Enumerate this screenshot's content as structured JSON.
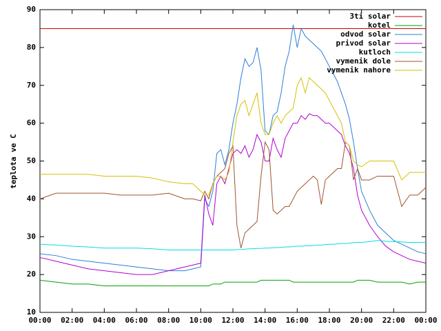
{
  "chart_data": {
    "type": "line",
    "y_label": "teplota ve C",
    "x": [
      0,
      1,
      2,
      3,
      4,
      5,
      6,
      7,
      8,
      9,
      9.5,
      10,
      10.25,
      10.5,
      10.75,
      11,
      11.25,
      11.5,
      11.75,
      12,
      12.25,
      12.5,
      12.75,
      13,
      13.25,
      13.5,
      13.75,
      14,
      14.25,
      14.5,
      14.75,
      15,
      15.25,
      15.5,
      15.75,
      16,
      16.25,
      16.5,
      16.75,
      17,
      17.25,
      17.5,
      17.75,
      18,
      18.25,
      18.5,
      18.75,
      19,
      19.25,
      19.5,
      19.75,
      20,
      20.5,
      21,
      21.5,
      22,
      22.5,
      23,
      23.5,
      24
    ],
    "xlim": [
      0,
      24
    ],
    "xticks": [
      {
        "value": 0,
        "label": "00:00"
      },
      {
        "value": 2,
        "label": "02:00"
      },
      {
        "value": 4,
        "label": "04:00"
      },
      {
        "value": 6,
        "label": "06:00"
      },
      {
        "value": 8,
        "label": "08:00"
      },
      {
        "value": 10,
        "label": "10:00"
      },
      {
        "value": 12,
        "label": "12:00"
      },
      {
        "value": 14,
        "label": "14:00"
      },
      {
        "value": 16,
        "label": "16:00"
      },
      {
        "value": 18,
        "label": "18:00"
      },
      {
        "value": 20,
        "label": "20:00"
      },
      {
        "value": 22,
        "label": "22:00"
      },
      {
        "value": 24,
        "label": "00:00"
      }
    ],
    "ylim": [
      10,
      90
    ],
    "yticks": [
      10,
      20,
      30,
      40,
      50,
      60,
      70,
      80,
      90
    ],
    "legend": "top-right",
    "series": [
      {
        "name": "3ti solar",
        "color": "#cc0000",
        "values": [
          85,
          85,
          85,
          85,
          85,
          85,
          85,
          85,
          85,
          85,
          85,
          85,
          85,
          85,
          85,
          85,
          85,
          85,
          85,
          85,
          85,
          85,
          85,
          85,
          85,
          85,
          85,
          85,
          85,
          85,
          85,
          85,
          85,
          85,
          85,
          85,
          85,
          85,
          85,
          85,
          85,
          85,
          85,
          85,
          85,
          85,
          85,
          85,
          85,
          85,
          85,
          85,
          85,
          85,
          85,
          85,
          85,
          85,
          85,
          85
        ]
      },
      {
        "name": "kotel",
        "color": "#00a000",
        "values": [
          18.5,
          18,
          17.5,
          17.5,
          17,
          17,
          17,
          17,
          17,
          17,
          17,
          17,
          17,
          17,
          17.5,
          17.5,
          17.5,
          18,
          18,
          18,
          18,
          18,
          18,
          18,
          18,
          18,
          18.5,
          18.5,
          18.5,
          18.5,
          18.5,
          18.5,
          18.5,
          18.5,
          18,
          18,
          18,
          18,
          18,
          18,
          18,
          18,
          18,
          18,
          18,
          18,
          18,
          18,
          18,
          18,
          18.5,
          18.5,
          18.5,
          18,
          18,
          18,
          18,
          17.5,
          18,
          18
        ]
      },
      {
        "name": "odvod solar",
        "color": "#2a7fd4",
        "values": [
          25.5,
          25,
          24,
          23.5,
          23,
          22.5,
          22,
          21.5,
          21,
          21,
          21.5,
          22,
          40,
          38,
          42,
          52,
          53,
          49,
          53,
          60,
          65,
          72,
          77,
          75,
          76,
          80,
          74,
          58,
          57,
          62,
          63,
          68,
          75,
          79,
          86,
          80,
          85,
          83,
          82,
          81,
          80,
          79,
          77,
          75,
          73,
          71,
          68,
          65,
          61,
          55,
          48,
          42,
          37,
          33,
          31,
          29,
          28,
          27,
          26,
          25.5
        ]
      },
      {
        "name": "privod solar",
        "color": "#b000d0",
        "values": [
          24.5,
          23.5,
          22.5,
          21.5,
          21,
          20.5,
          20,
          20,
          21,
          22,
          22.5,
          23,
          41,
          36,
          33,
          44,
          46,
          44,
          48,
          52,
          53,
          52,
          54,
          51,
          53,
          57,
          55,
          50,
          50,
          56,
          53,
          51,
          56,
          58,
          60,
          60,
          62,
          61,
          62.5,
          62,
          62,
          61,
          60,
          60,
          59,
          58,
          57,
          54,
          52,
          48,
          41,
          37,
          33,
          30,
          27.5,
          26,
          25,
          24,
          23.5,
          23
        ]
      },
      {
        "name": "kutloch",
        "color": "#00dede",
        "values": [
          28,
          27.8,
          27.5,
          27.3,
          27,
          27,
          27,
          26.8,
          26.5,
          26.5,
          26.5,
          26.5,
          26.5,
          26.5,
          26.5,
          26.5,
          26.5,
          26.5,
          26.5,
          26.5,
          26.6,
          26.6,
          26.7,
          26.8,
          26.8,
          26.9,
          26.9,
          27,
          27,
          27.1,
          27.1,
          27.2,
          27.3,
          27.3,
          27.4,
          27.5,
          27.5,
          27.6,
          27.6,
          27.7,
          27.8,
          27.8,
          27.9,
          28,
          28,
          28.1,
          28.2,
          28.2,
          28.3,
          28.4,
          28.5,
          28.5,
          28.7,
          29,
          28.8,
          28.7,
          28.6,
          28.5,
          28.5,
          28.5
        ]
      },
      {
        "name": "vymenik dole",
        "color": "#a0522d",
        "values": [
          40,
          41.5,
          41.5,
          41.5,
          41.5,
          41,
          41,
          41,
          41.5,
          40,
          40,
          39.5,
          42,
          40,
          44,
          46,
          47,
          48,
          52,
          54,
          33,
          27,
          31,
          32,
          33,
          34,
          46,
          55,
          53,
          37,
          36,
          37,
          38,
          38,
          40,
          42,
          43,
          44,
          45,
          46,
          45,
          38.5,
          45,
          46,
          47,
          48,
          48,
          55,
          54,
          45,
          48,
          45,
          45,
          46,
          46,
          46,
          38,
          41,
          41,
          43
        ]
      },
      {
        "name": "vymenik nahore",
        "color": "#d4c000",
        "values": [
          46.5,
          46.5,
          46.5,
          46.5,
          46,
          46,
          46,
          45.5,
          44.5,
          44,
          44,
          42,
          41,
          41,
          44,
          46,
          46,
          45,
          47,
          55,
          62,
          65,
          66,
          62,
          65,
          68,
          60,
          57,
          57,
          60,
          62,
          60,
          62,
          63,
          64,
          70,
          72,
          68,
          72,
          71,
          70,
          69,
          68,
          66,
          64,
          62,
          60,
          55,
          54,
          50,
          49,
          48.5,
          50,
          50,
          50,
          50,
          45,
          47,
          47,
          47
        ]
      }
    ]
  }
}
